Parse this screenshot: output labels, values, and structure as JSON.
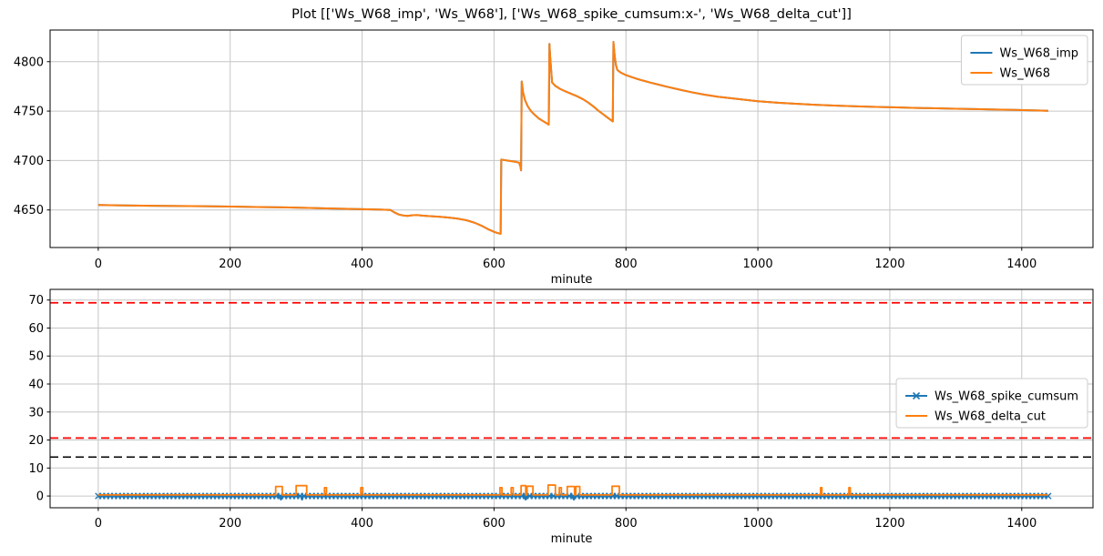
{
  "title": "Plot [['Ws_W68_imp', 'Ws_W68'], ['Ws_W68_spike_cumsum:x-', 'Ws_W68_delta_cut']]",
  "colors": {
    "blue": "#1f77b4",
    "orange": "#ff7f0e",
    "red": "#ff0000",
    "black": "#000000",
    "grid": "#c6c6c6",
    "spine": "#000000",
    "background": "#ffffff"
  },
  "chart_data": [
    {
      "type": "line",
      "title": "",
      "xlabel": "minute",
      "ylabel": "",
      "xlim": [
        -73,
        1508
      ],
      "ylim": [
        4612,
        4832
      ],
      "xticks": [
        0,
        200,
        400,
        600,
        800,
        1000,
        1200,
        1400
      ],
      "yticks": [
        4650,
        4700,
        4750,
        4800
      ],
      "grid": true,
      "legend": {
        "position": "upper right",
        "entries": [
          {
            "label": "Ws_W68_imp",
            "color": "#1f77b4"
          },
          {
            "label": "Ws_W68",
            "color": "#ff7f0e"
          }
        ]
      },
      "series": [
        {
          "name": "Ws_W68_imp",
          "color": "#1f77b4",
          "linewidth": 2,
          "points_same_as": "Ws_W68"
        },
        {
          "name": "Ws_W68",
          "color": "#ff7f0e",
          "linewidth": 2,
          "points": [
            [
              0,
              4655
            ],
            [
              40,
              4654.6
            ],
            [
              80,
              4654.2
            ],
            [
              120,
              4654
            ],
            [
              160,
              4653.8
            ],
            [
              200,
              4653.4
            ],
            [
              240,
              4653
            ],
            [
              280,
              4652.6
            ],
            [
              320,
              4652
            ],
            [
              360,
              4651.4
            ],
            [
              400,
              4650.8
            ],
            [
              430,
              4650.3
            ],
            [
              443,
              4650
            ],
            [
              449,
              4647.5
            ],
            [
              456,
              4645.3
            ],
            [
              463,
              4644.3
            ],
            [
              469,
              4644
            ],
            [
              477,
              4644.7
            ],
            [
              484,
              4644.8
            ],
            [
              492,
              4644.2
            ],
            [
              502,
              4643.8
            ],
            [
              516,
              4643.2
            ],
            [
              530,
              4642.4
            ],
            [
              545,
              4641.2
            ],
            [
              558,
              4639.6
            ],
            [
              570,
              4637.2
            ],
            [
              582,
              4633.8
            ],
            [
              592,
              4630.2
            ],
            [
              601,
              4627.6
            ],
            [
              607,
              4626.4
            ],
            [
              610,
              4625.9
            ],
            [
              611,
              4701
            ],
            [
              617,
              4700.3
            ],
            [
              623,
              4699.7
            ],
            [
              629,
              4699.1
            ],
            [
              634,
              4698.5
            ],
            [
              638,
              4697.8
            ],
            [
              640,
              4694
            ],
            [
              641,
              4690
            ],
            [
              642,
              4780
            ],
            [
              644,
              4769
            ],
            [
              647,
              4761
            ],
            [
              651,
              4755
            ],
            [
              656,
              4750
            ],
            [
              662,
              4746
            ],
            [
              668,
              4742.5
            ],
            [
              674,
              4740
            ],
            [
              679,
              4738
            ],
            [
              683,
              4736.3
            ],
            [
              684,
              4818
            ],
            [
              685,
              4806
            ],
            [
              686,
              4797
            ],
            [
              688,
              4779
            ],
            [
              693,
              4775.5
            ],
            [
              700,
              4772.5
            ],
            [
              708,
              4770
            ],
            [
              717,
              4767.5
            ],
            [
              726,
              4765
            ],
            [
              735,
              4762
            ],
            [
              743,
              4758.5
            ],
            [
              751,
              4754.5
            ],
            [
              759,
              4750
            ],
            [
              766,
              4746.5
            ],
            [
              772,
              4743.5
            ],
            [
              777,
              4741
            ],
            [
              780,
              4739.5
            ],
            [
              781,
              4820
            ],
            [
              783,
              4805
            ],
            [
              785,
              4796
            ],
            [
              787,
              4791.5
            ],
            [
              792,
              4789
            ],
            [
              798,
              4787
            ],
            [
              806,
              4785
            ],
            [
              815,
              4783
            ],
            [
              825,
              4781
            ],
            [
              836,
              4779
            ],
            [
              848,
              4777
            ],
            [
              860,
              4775
            ],
            [
              873,
              4773
            ],
            [
              886,
              4771
            ],
            [
              900,
              4769
            ],
            [
              920,
              4766.5
            ],
            [
              940,
              4764.5
            ],
            [
              960,
              4763
            ],
            [
              980,
              4761.5
            ],
            [
              1000,
              4760
            ],
            [
              1030,
              4758.5
            ],
            [
              1060,
              4757.3
            ],
            [
              1090,
              4756.3
            ],
            [
              1120,
              4755.5
            ],
            [
              1150,
              4754.8
            ],
            [
              1180,
              4754.2
            ],
            [
              1210,
              4753.7
            ],
            [
              1240,
              4753.2
            ],
            [
              1270,
              4752.8
            ],
            [
              1300,
              4752.4
            ],
            [
              1330,
              4752
            ],
            [
              1360,
              4751.6
            ],
            [
              1390,
              4751.2
            ],
            [
              1415,
              4750.8
            ],
            [
              1440,
              4750.3
            ]
          ]
        }
      ]
    },
    {
      "type": "line",
      "title": "",
      "xlabel": "minute",
      "ylabel": "",
      "xlim": [
        -73,
        1508
      ],
      "ylim": [
        -4.2,
        73.8
      ],
      "xticks": [
        0,
        200,
        400,
        600,
        800,
        1000,
        1200,
        1400
      ],
      "yticks": [
        0,
        10,
        20,
        30,
        40,
        50,
        60,
        70
      ],
      "grid": true,
      "hlines": [
        {
          "y": 69,
          "color": "#ff0000",
          "style": "dashed",
          "width": 1.8
        },
        {
          "y": 20.7,
          "color": "#ff0000",
          "style": "dashed",
          "width": 1.8
        },
        {
          "y": 13.9,
          "color": "#000000",
          "style": "dashed",
          "width": 1.5
        }
      ],
      "legend": {
        "position": "center right",
        "entries": [
          {
            "label": "Ws_W68_spike_cumsum",
            "color": "#1f77b4",
            "marker": "x"
          },
          {
            "label": "Ws_W68_delta_cut",
            "color": "#ff7f0e"
          }
        ]
      },
      "series": [
        {
          "name": "Ws_W68_spike_cumsum",
          "color": "#1f77b4",
          "linewidth": 2.4,
          "marker": "x",
          "marker_spacing": 6,
          "baseline": 0,
          "x_range": [
            0,
            1440
          ],
          "dips": [
            [
              277,
              -1.2
            ],
            [
              309,
              -1.2
            ],
            [
              648,
              -1.2
            ],
            [
              721,
              -1.2
            ]
          ]
        },
        {
          "name": "Ws_W68_delta_cut",
          "color": "#ff7f0e",
          "linewidth": 1.8,
          "baseline": 0.4,
          "x_range": [
            0,
            1440
          ],
          "pulses": [
            [
              269,
              279,
              3.4
            ],
            [
              300,
              316,
              3.7
            ],
            [
              343,
              346,
              3.0
            ],
            [
              398,
              401,
              3.0
            ],
            [
              609,
              612,
              3.0
            ],
            [
              626,
              629,
              3.0
            ],
            [
              641,
              648,
              3.7
            ],
            [
              650,
              659,
              3.5
            ],
            [
              682,
              693,
              3.9
            ],
            [
              699,
              702,
              3.0
            ],
            [
              711,
              722,
              3.4
            ],
            [
              724,
              730,
              3.4
            ],
            [
              779,
              790,
              3.5
            ],
            [
              1095,
              1097,
              3.0
            ],
            [
              1138,
              1140,
              3.0
            ]
          ]
        }
      ]
    }
  ]
}
